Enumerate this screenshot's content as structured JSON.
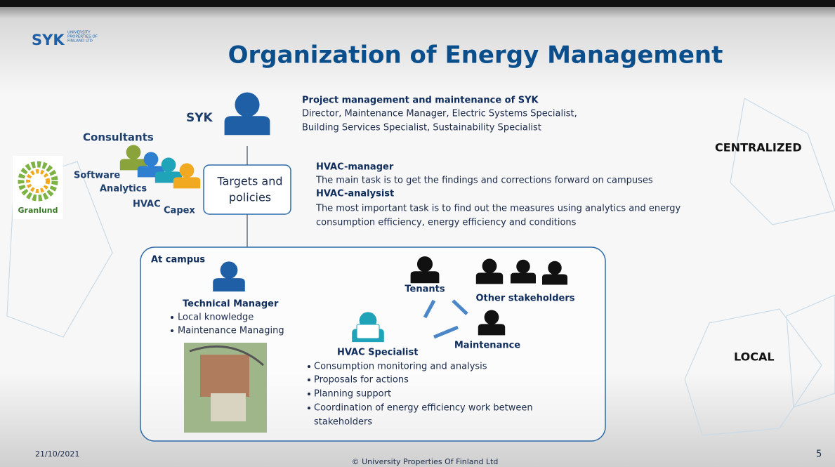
{
  "logo": {
    "mark": "SYK",
    "lines": [
      "UNIVERSITY",
      "PROPERTIES OF",
      "FINLAND LTD"
    ]
  },
  "title": "Organization of Energy Management",
  "syk": {
    "label": "SYK",
    "heading": "Project management and maintenance of SYK",
    "lines": [
      "Director, Maintenance Manager, Electric Systems Specialist,",
      "Building Services Specialist, Sustainability Specialist"
    ]
  },
  "consultants": {
    "label": "Consultants",
    "items": [
      "Software",
      "Analytics",
      "HVAC",
      "Capex"
    ],
    "partner": "Granlund"
  },
  "targets": [
    "Targets and",
    "policies"
  ],
  "hvac_roles": [
    {
      "heading": "HVAC-manager",
      "lines": [
        "The main task is to get the findings and corrections forward on campuses"
      ]
    },
    {
      "heading": "HVAC-analysist",
      "lines": [
        "The most important task is to find out the measures using analytics and energy",
        "consumption efficiency, energy efficiency and conditions"
      ]
    }
  ],
  "levels": {
    "top": "CENTRALIZED",
    "bottom": "LOCAL"
  },
  "campus": {
    "label": "At campus",
    "technical_manager": {
      "title": "Technical Manager",
      "bullets": [
        "Local knowledge",
        "Maintenance Managing"
      ]
    },
    "hvac_specialist": {
      "title": "HVAC Specialist",
      "bullets": [
        "Consumption monitoring and analysis",
        "Proposals for actions",
        "Planning support",
        "Coordination of energy efficiency work between",
        "stakeholders"
      ]
    },
    "groups": [
      "Tenants",
      "Other stakeholders",
      "Maintenance"
    ]
  },
  "footer": {
    "date": "21/10/2021",
    "copyright": "© University Properties Of Finland Ltd",
    "page": "5"
  }
}
